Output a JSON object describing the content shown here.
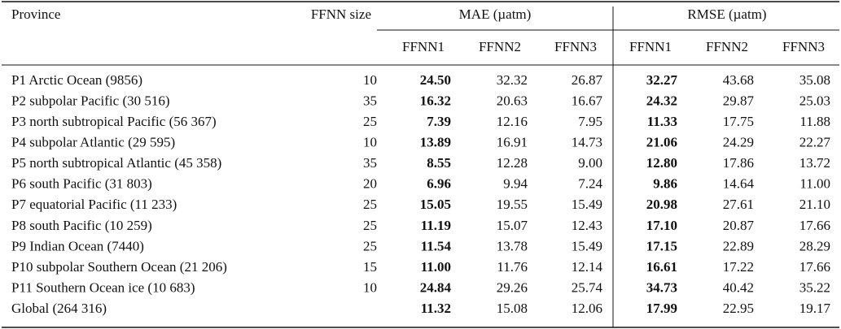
{
  "table": {
    "header": {
      "province": "Province",
      "size": "FFNN size",
      "mae": "MAE (µatm)",
      "rmse": "RMSE (µatm)",
      "sub": [
        "FFNN1",
        "FFNN2",
        "FFNN3",
        "FFNN1",
        "FFNN2",
        "FFNN3"
      ]
    },
    "rows": [
      [
        "P1 Arctic Ocean (9856)",
        "10",
        "24.50",
        "32.32",
        "26.87",
        "32.27",
        "43.68",
        "35.08"
      ],
      [
        "P2 subpolar Pacific (30 516)",
        "35",
        "16.32",
        "20.63",
        "16.67",
        "24.32",
        "29.87",
        "25.03"
      ],
      [
        "P3 north subtropical Pacific (56 367)",
        "25",
        "7.39",
        "12.16",
        "7.95",
        "11.33",
        "17.75",
        "11.88"
      ],
      [
        "P4 subpolar Atlantic (29 595)",
        "10",
        "13.89",
        "16.91",
        "14.73",
        "21.06",
        "24.29",
        "22.27"
      ],
      [
        "P5 north subtropical Atlantic (45 358)",
        "35",
        "8.55",
        "12.28",
        "9.00",
        "12.80",
        "17.86",
        "13.72"
      ],
      [
        "P6 south Pacific (31 803)",
        "20",
        "6.96",
        "9.94",
        "7.24",
        "9.86",
        "14.64",
        "11.00"
      ],
      [
        "P7 equatorial Pacific (11 233)",
        "25",
        "15.05",
        "19.55",
        "15.49",
        "20.98",
        "27.61",
        "21.10"
      ],
      [
        "P8 south Pacific (10 259)",
        "25",
        "11.19",
        "15.07",
        "12.43",
        "17.10",
        "20.87",
        "17.66"
      ],
      [
        "P9 Indian Ocean (7440)",
        "25",
        "11.54",
        "13.78",
        "15.49",
        "17.15",
        "22.89",
        "28.29"
      ],
      [
        "P10 subpolar Southern Ocean (21 206)",
        "15",
        "11.00",
        "11.76",
        "12.14",
        "16.61",
        "17.22",
        "17.66"
      ],
      [
        "P11 Southern Ocean ice (10 683)",
        "10",
        "24.84",
        "29.26",
        "25.74",
        "34.73",
        "40.42",
        "35.22"
      ],
      [
        "Global (264 316)",
        "",
        "11.32",
        "15.08",
        "12.06",
        "17.99",
        "22.95",
        "19.17"
      ]
    ]
  }
}
